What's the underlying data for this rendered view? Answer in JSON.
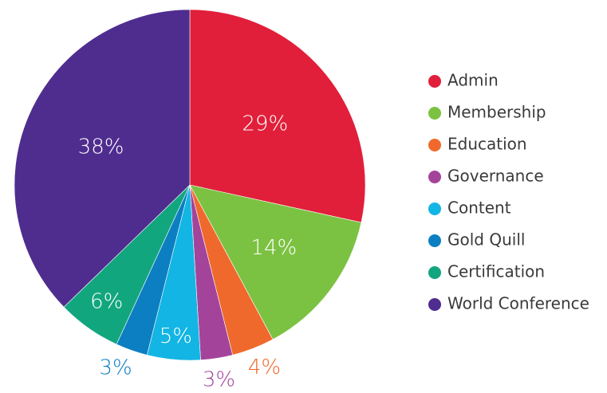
{
  "chart_data": {
    "type": "pie",
    "title": "",
    "series": [
      {
        "name": "Admin",
        "value": 29,
        "label": "29%",
        "color": "#e11f3a"
      },
      {
        "name": "Membership",
        "value": 14,
        "label": "14%",
        "color": "#7cc242"
      },
      {
        "name": "Education",
        "value": 4,
        "label": "4%",
        "color": "#f0692c"
      },
      {
        "name": "Governance",
        "value": 3,
        "label": "3%",
        "color": "#a3449a"
      },
      {
        "name": "Content",
        "value": 5,
        "label": "5%",
        "color": "#12b5e4"
      },
      {
        "name": "Gold Quill",
        "value": 3,
        "label": "3%",
        "color": "#0b7fc1"
      },
      {
        "name": "Certification",
        "value": 6,
        "label": "6%",
        "color": "#12a67f"
      },
      {
        "name": "World Conference",
        "value": 38,
        "label": "38%",
        "color": "#4f2d8f"
      }
    ],
    "legend_position": "right",
    "start_angle": "12 o'clock, clockwise"
  }
}
